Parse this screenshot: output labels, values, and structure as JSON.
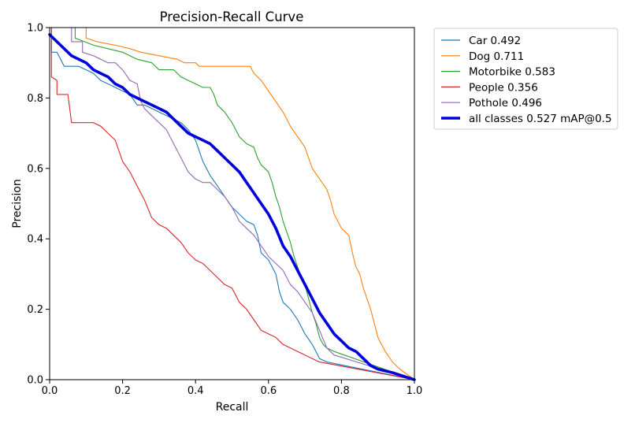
{
  "chart_data": {
    "type": "line",
    "title": "Precision-Recall Curve",
    "xlabel": "Recall",
    "ylabel": "Precision",
    "xlim": [
      0,
      1
    ],
    "ylim": [
      0,
      1
    ],
    "xticks": [
      "0.0",
      "0.2",
      "0.4",
      "0.6",
      "0.8",
      "1.0"
    ],
    "yticks": [
      "0.0",
      "0.2",
      "0.4",
      "0.6",
      "0.8",
      "1.0"
    ],
    "legend_position": "outside-right-top",
    "series": [
      {
        "name": "Car",
        "legend_label": "Car 0.492",
        "ap": 0.492,
        "color": "#1f77b4",
        "bold": false,
        "points": [
          [
            0,
            1.0
          ],
          [
            0.005,
            1.0
          ],
          [
            0.005,
            0.93
          ],
          [
            0.02,
            0.93
          ],
          [
            0.04,
            0.89
          ],
          [
            0.08,
            0.89
          ],
          [
            0.1,
            0.88
          ],
          [
            0.12,
            0.87
          ],
          [
            0.14,
            0.85
          ],
          [
            0.16,
            0.84
          ],
          [
            0.18,
            0.83
          ],
          [
            0.2,
            0.82
          ],
          [
            0.22,
            0.81
          ],
          [
            0.24,
            0.78
          ],
          [
            0.26,
            0.78
          ],
          [
            0.28,
            0.77
          ],
          [
            0.3,
            0.76
          ],
          [
            0.32,
            0.75
          ],
          [
            0.34,
            0.74
          ],
          [
            0.36,
            0.73
          ],
          [
            0.38,
            0.71
          ],
          [
            0.4,
            0.68
          ],
          [
            0.41,
            0.65
          ],
          [
            0.42,
            0.62
          ],
          [
            0.44,
            0.58
          ],
          [
            0.46,
            0.55
          ],
          [
            0.48,
            0.52
          ],
          [
            0.5,
            0.49
          ],
          [
            0.52,
            0.47
          ],
          [
            0.54,
            0.45
          ],
          [
            0.56,
            0.44
          ],
          [
            0.57,
            0.41
          ],
          [
            0.58,
            0.36
          ],
          [
            0.6,
            0.34
          ],
          [
            0.62,
            0.3
          ],
          [
            0.63,
            0.25
          ],
          [
            0.64,
            0.22
          ],
          [
            0.66,
            0.2
          ],
          [
            0.68,
            0.17
          ],
          [
            0.7,
            0.13
          ],
          [
            0.72,
            0.1
          ],
          [
            0.74,
            0.06
          ],
          [
            0.76,
            0.05
          ],
          [
            1.0,
            0.0
          ]
        ]
      },
      {
        "name": "Dog",
        "legend_label": "Dog 0.711",
        "ap": 0.711,
        "color": "#ff7f0e",
        "bold": false,
        "points": [
          [
            0,
            1.0
          ],
          [
            0.1,
            1.0
          ],
          [
            0.1,
            0.97
          ],
          [
            0.13,
            0.96
          ],
          [
            0.18,
            0.95
          ],
          [
            0.22,
            0.94
          ],
          [
            0.25,
            0.93
          ],
          [
            0.3,
            0.92
          ],
          [
            0.35,
            0.91
          ],
          [
            0.37,
            0.9
          ],
          [
            0.4,
            0.9
          ],
          [
            0.41,
            0.89
          ],
          [
            0.55,
            0.89
          ],
          [
            0.56,
            0.87
          ],
          [
            0.58,
            0.85
          ],
          [
            0.6,
            0.82
          ],
          [
            0.62,
            0.79
          ],
          [
            0.64,
            0.76
          ],
          [
            0.66,
            0.72
          ],
          [
            0.68,
            0.69
          ],
          [
            0.7,
            0.66
          ],
          [
            0.71,
            0.63
          ],
          [
            0.72,
            0.6
          ],
          [
            0.74,
            0.57
          ],
          [
            0.76,
            0.54
          ],
          [
            0.77,
            0.51
          ],
          [
            0.78,
            0.47
          ],
          [
            0.8,
            0.43
          ],
          [
            0.82,
            0.41
          ],
          [
            0.83,
            0.36
          ],
          [
            0.84,
            0.32
          ],
          [
            0.85,
            0.3
          ],
          [
            0.86,
            0.26
          ],
          [
            0.87,
            0.23
          ],
          [
            0.88,
            0.2
          ],
          [
            0.89,
            0.16
          ],
          [
            0.9,
            0.12
          ],
          [
            0.91,
            0.1
          ],
          [
            0.92,
            0.08
          ],
          [
            0.94,
            0.05
          ],
          [
            0.96,
            0.03
          ],
          [
            1.0,
            0.0
          ]
        ]
      },
      {
        "name": "Motorbike",
        "legend_label": "Motorbike 0.583",
        "ap": 0.583,
        "color": "#2ca02c",
        "bold": false,
        "points": [
          [
            0,
            1.0
          ],
          [
            0.07,
            1.0
          ],
          [
            0.07,
            0.97
          ],
          [
            0.12,
            0.95
          ],
          [
            0.16,
            0.94
          ],
          [
            0.2,
            0.93
          ],
          [
            0.24,
            0.91
          ],
          [
            0.28,
            0.9
          ],
          [
            0.3,
            0.88
          ],
          [
            0.34,
            0.88
          ],
          [
            0.36,
            0.86
          ],
          [
            0.38,
            0.85
          ],
          [
            0.4,
            0.84
          ],
          [
            0.42,
            0.83
          ],
          [
            0.44,
            0.83
          ],
          [
            0.45,
            0.81
          ],
          [
            0.46,
            0.78
          ],
          [
            0.48,
            0.76
          ],
          [
            0.5,
            0.73
          ],
          [
            0.52,
            0.69
          ],
          [
            0.54,
            0.67
          ],
          [
            0.56,
            0.66
          ],
          [
            0.57,
            0.63
          ],
          [
            0.58,
            0.61
          ],
          [
            0.6,
            0.59
          ],
          [
            0.61,
            0.56
          ],
          [
            0.62,
            0.52
          ],
          [
            0.63,
            0.49
          ],
          [
            0.64,
            0.45
          ],
          [
            0.65,
            0.42
          ],
          [
            0.66,
            0.39
          ],
          [
            0.67,
            0.35
          ],
          [
            0.68,
            0.32
          ],
          [
            0.69,
            0.29
          ],
          [
            0.7,
            0.27
          ],
          [
            0.71,
            0.23
          ],
          [
            0.72,
            0.19
          ],
          [
            0.73,
            0.16
          ],
          [
            0.74,
            0.12
          ],
          [
            0.75,
            0.1
          ],
          [
            0.76,
            0.09
          ],
          [
            0.78,
            0.08
          ],
          [
            1.0,
            0.0
          ]
        ]
      },
      {
        "name": "People",
        "legend_label": "People 0.356",
        "ap": 0.356,
        "color": "#d62728",
        "bold": false,
        "points": [
          [
            0,
            1.0
          ],
          [
            0.005,
            1.0
          ],
          [
            0.005,
            0.86
          ],
          [
            0.02,
            0.85
          ],
          [
            0.02,
            0.81
          ],
          [
            0.05,
            0.81
          ],
          [
            0.06,
            0.73
          ],
          [
            0.12,
            0.73
          ],
          [
            0.14,
            0.72
          ],
          [
            0.16,
            0.7
          ],
          [
            0.18,
            0.68
          ],
          [
            0.2,
            0.62
          ],
          [
            0.22,
            0.59
          ],
          [
            0.24,
            0.55
          ],
          [
            0.26,
            0.51
          ],
          [
            0.28,
            0.46
          ],
          [
            0.3,
            0.44
          ],
          [
            0.32,
            0.43
          ],
          [
            0.34,
            0.41
          ],
          [
            0.36,
            0.39
          ],
          [
            0.38,
            0.36
          ],
          [
            0.4,
            0.34
          ],
          [
            0.42,
            0.33
          ],
          [
            0.44,
            0.31
          ],
          [
            0.46,
            0.29
          ],
          [
            0.48,
            0.27
          ],
          [
            0.5,
            0.26
          ],
          [
            0.52,
            0.22
          ],
          [
            0.54,
            0.2
          ],
          [
            0.56,
            0.17
          ],
          [
            0.58,
            0.14
          ],
          [
            0.6,
            0.13
          ],
          [
            0.62,
            0.12
          ],
          [
            0.64,
            0.1
          ],
          [
            0.66,
            0.09
          ],
          [
            0.68,
            0.08
          ],
          [
            0.7,
            0.07
          ],
          [
            0.72,
            0.06
          ],
          [
            0.74,
            0.05
          ],
          [
            1.0,
            0.0
          ]
        ]
      },
      {
        "name": "Pothole",
        "legend_label": "Pothole 0.496",
        "ap": 0.496,
        "color": "#9467bd",
        "bold": false,
        "points": [
          [
            0,
            1.0
          ],
          [
            0.06,
            1.0
          ],
          [
            0.06,
            0.96
          ],
          [
            0.09,
            0.96
          ],
          [
            0.09,
            0.93
          ],
          [
            0.12,
            0.92
          ],
          [
            0.14,
            0.91
          ],
          [
            0.16,
            0.9
          ],
          [
            0.18,
            0.9
          ],
          [
            0.2,
            0.88
          ],
          [
            0.22,
            0.85
          ],
          [
            0.24,
            0.84
          ],
          [
            0.25,
            0.79
          ],
          [
            0.26,
            0.77
          ],
          [
            0.28,
            0.75
          ],
          [
            0.3,
            0.73
          ],
          [
            0.32,
            0.71
          ],
          [
            0.34,
            0.67
          ],
          [
            0.36,
            0.63
          ],
          [
            0.37,
            0.61
          ],
          [
            0.38,
            0.59
          ],
          [
            0.4,
            0.57
          ],
          [
            0.42,
            0.56
          ],
          [
            0.44,
            0.56
          ],
          [
            0.46,
            0.54
          ],
          [
            0.48,
            0.52
          ],
          [
            0.5,
            0.49
          ],
          [
            0.52,
            0.45
          ],
          [
            0.54,
            0.43
          ],
          [
            0.56,
            0.41
          ],
          [
            0.58,
            0.38
          ],
          [
            0.6,
            0.35
          ],
          [
            0.62,
            0.33
          ],
          [
            0.64,
            0.31
          ],
          [
            0.66,
            0.27
          ],
          [
            0.68,
            0.25
          ],
          [
            0.7,
            0.22
          ],
          [
            0.72,
            0.19
          ],
          [
            0.74,
            0.14
          ],
          [
            0.76,
            0.09
          ],
          [
            0.78,
            0.07
          ],
          [
            1.0,
            0.0
          ]
        ]
      },
      {
        "name": "all classes",
        "legend_label": "all classes 0.527 mAP@0.5",
        "ap": 0.527,
        "color": "#0000dd",
        "bold": true,
        "points": [
          [
            0,
            0.98
          ],
          [
            0.01,
            0.97
          ],
          [
            0.02,
            0.96
          ],
          [
            0.03,
            0.95
          ],
          [
            0.04,
            0.94
          ],
          [
            0.06,
            0.92
          ],
          [
            0.08,
            0.91
          ],
          [
            0.1,
            0.9
          ],
          [
            0.12,
            0.88
          ],
          [
            0.14,
            0.87
          ],
          [
            0.16,
            0.86
          ],
          [
            0.18,
            0.84
          ],
          [
            0.2,
            0.83
          ],
          [
            0.22,
            0.81
          ],
          [
            0.24,
            0.8
          ],
          [
            0.26,
            0.79
          ],
          [
            0.28,
            0.78
          ],
          [
            0.3,
            0.77
          ],
          [
            0.32,
            0.76
          ],
          [
            0.34,
            0.74
          ],
          [
            0.36,
            0.72
          ],
          [
            0.38,
            0.7
          ],
          [
            0.4,
            0.69
          ],
          [
            0.42,
            0.68
          ],
          [
            0.44,
            0.67
          ],
          [
            0.46,
            0.65
          ],
          [
            0.48,
            0.63
          ],
          [
            0.5,
            0.61
          ],
          [
            0.52,
            0.59
          ],
          [
            0.54,
            0.56
          ],
          [
            0.56,
            0.53
          ],
          [
            0.58,
            0.5
          ],
          [
            0.6,
            0.47
          ],
          [
            0.62,
            0.43
          ],
          [
            0.64,
            0.38
          ],
          [
            0.66,
            0.35
          ],
          [
            0.68,
            0.31
          ],
          [
            0.7,
            0.27
          ],
          [
            0.72,
            0.23
          ],
          [
            0.74,
            0.19
          ],
          [
            0.76,
            0.16
          ],
          [
            0.78,
            0.13
          ],
          [
            0.8,
            0.11
          ],
          [
            0.82,
            0.09
          ],
          [
            0.84,
            0.08
          ],
          [
            0.86,
            0.06
          ],
          [
            0.88,
            0.04
          ],
          [
            0.9,
            0.03
          ],
          [
            0.94,
            0.02
          ],
          [
            1.0,
            0.0
          ]
        ]
      }
    ]
  }
}
